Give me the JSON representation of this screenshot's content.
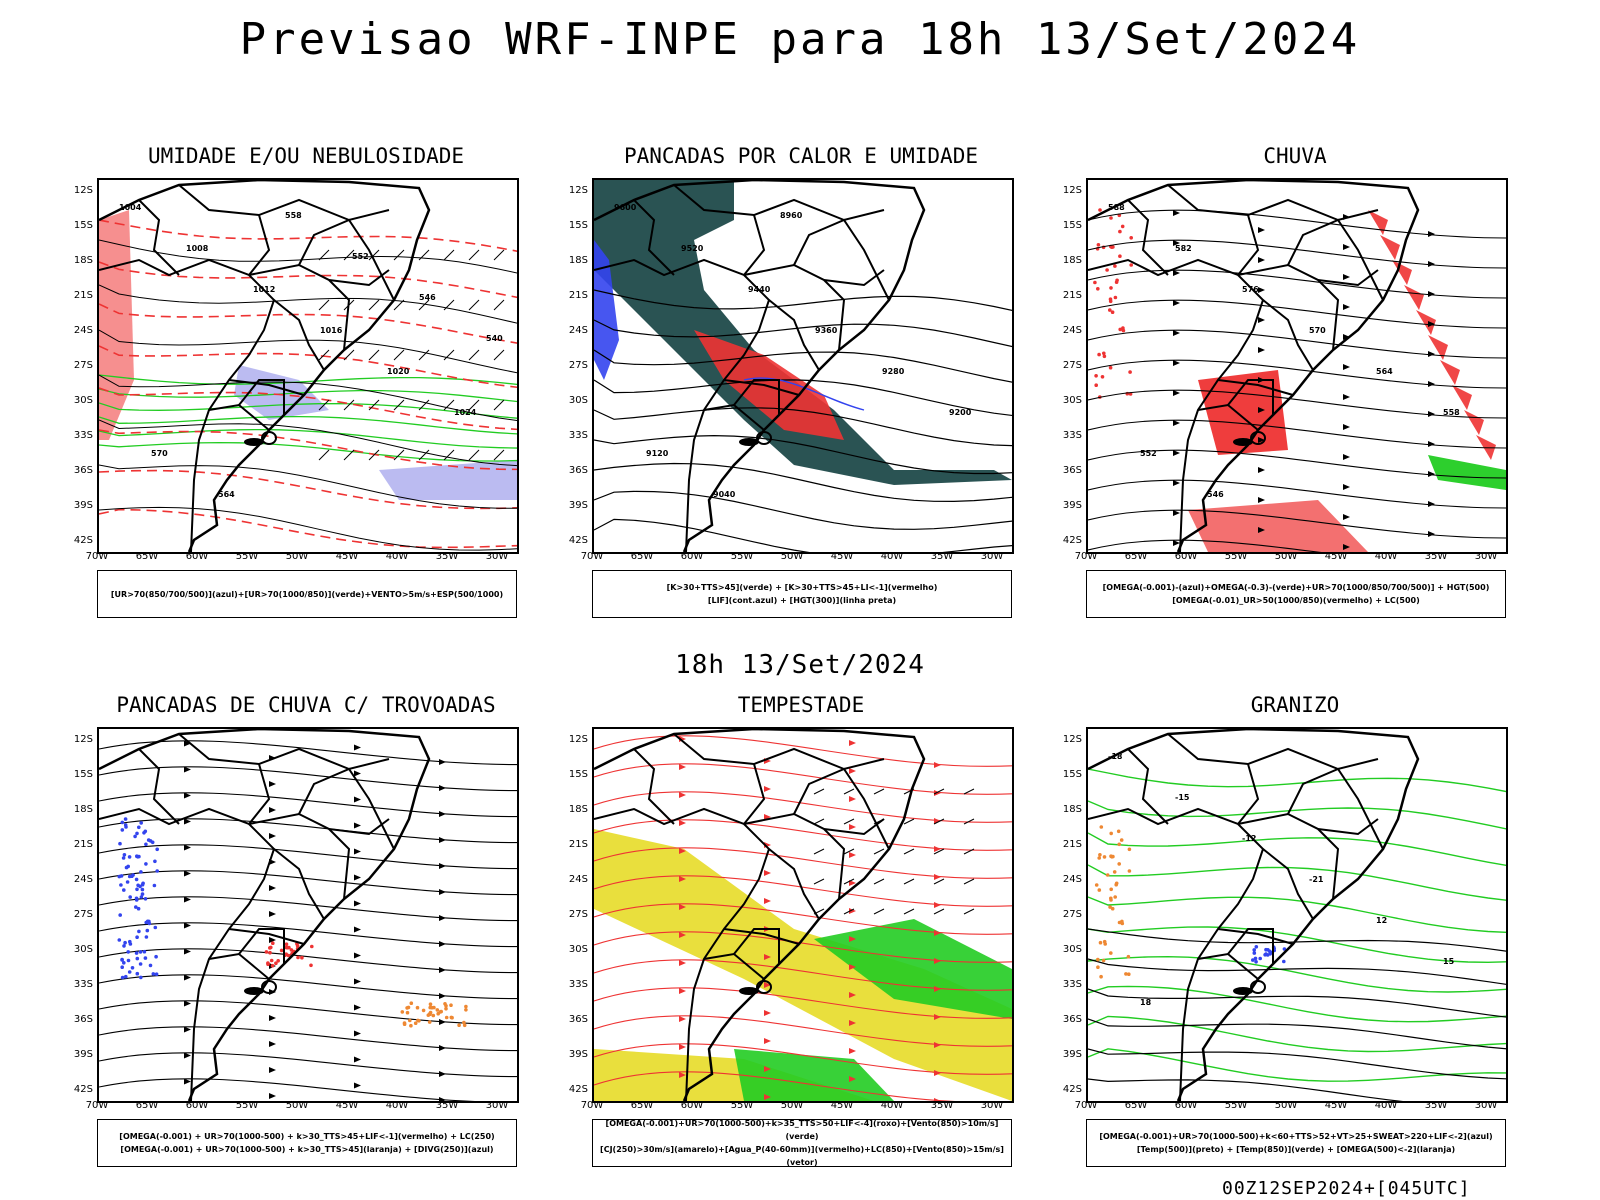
{
  "header": {
    "title": "Previsao WRF-INPE  para 18h 13/Set/2024"
  },
  "mid_title": "18h 13/Set/2024",
  "footer": "00Z12SEP2024+[045UTC]",
  "axes": {
    "lat_labels": [
      "12S",
      "15S",
      "18S",
      "21S",
      "24S",
      "27S",
      "30S",
      "33S",
      "36S",
      "39S",
      "42S"
    ],
    "lon_labels": [
      "70W",
      "65W",
      "60W",
      "55W",
      "50W",
      "45W",
      "40W",
      "35W",
      "30W"
    ]
  },
  "colors": {
    "red": "#ee3333",
    "green": "#22cc22",
    "blue": "#3344ee",
    "lavender": "#aaaaee",
    "darkteal": "#1f4a4a",
    "yellow": "#e8dd33",
    "orange": "#ee8833",
    "black": "#000000"
  },
  "panels": [
    {
      "title": "UMIDADE E/OU NEBULOSIDADE",
      "legend": [
        "[UR>70(850/700/500)](azul)+[UR>70(1000/850)](verde)+VENTO>5m/s+ESP(500/1000)"
      ],
      "contour_labels": [
        "1004",
        "1008",
        "1012",
        "1016",
        "1020",
        "1024",
        "570",
        "564",
        "558",
        "552",
        "546",
        "540"
      ]
    },
    {
      "title": "PANCADAS POR CALOR E UMIDADE",
      "legend": [
        "[K>30+TTS>45](verde) + [K>30+TTS>45+LI<-1](vermelho)",
        "[LIF](cont.azul) + [HGT(300)](linha preta)"
      ],
      "contour_labels": [
        "9600",
        "9520",
        "9440",
        "9360",
        "9280",
        "9200",
        "9120",
        "9040",
        "8960"
      ]
    },
    {
      "title": "CHUVA",
      "legend": [
        "[OMEGA(-0.001)-(azul)+OMEGA(-0.3)-(verde)+UR>70(1000/850/700/500)] + HGT(500)",
        "[OMEGA(-0.01)_UR>50(1000/850)(vermelho) + LC(500)"
      ],
      "contour_labels": [
        "588",
        "582",
        "576",
        "570",
        "564",
        "558",
        "552",
        "546"
      ]
    },
    {
      "title": "PANCADAS DE CHUVA C/ TROVOADAS",
      "legend": [
        "[OMEGA(-0.001) + UR>70(1000-500) + k>30_TTS>45+LIF<-1](vermelho) + LC(250)",
        "[OMEGA(-0.001) + UR>70(1000-500) + k>30_TTS>45](laranja) + [DIVG(250)](azul)"
      ],
      "contour_labels": []
    },
    {
      "title": "TEMPESTADE",
      "legend": [
        "[OMEGA(-0.001)+UR>70(1000-500)+k>35_TTS>50+LIF<-4](roxo)+[Vento(850)>10m/s](verde)",
        "[CJ(250)>30m/s](amarelo)+[Agua_P(40-60mm)](vermelho)+LC(850)+[Vento(850)>15m/s](vetor)"
      ],
      "contour_labels": []
    },
    {
      "title": "GRANIZO",
      "legend": [
        "[OMEGA(-0.001)+UR>70(1000-500)+k<60+TTS>52+VT>25+SWEAT>220+LIF<-2](azul)",
        "[Temp(500)](preto) + [Temp(850)](verde) + [OMEGA(500)<-2](laranja)"
      ],
      "contour_labels": [
        "-18",
        "-15",
        "-12",
        "-21",
        "12",
        "15",
        "18"
      ]
    }
  ]
}
